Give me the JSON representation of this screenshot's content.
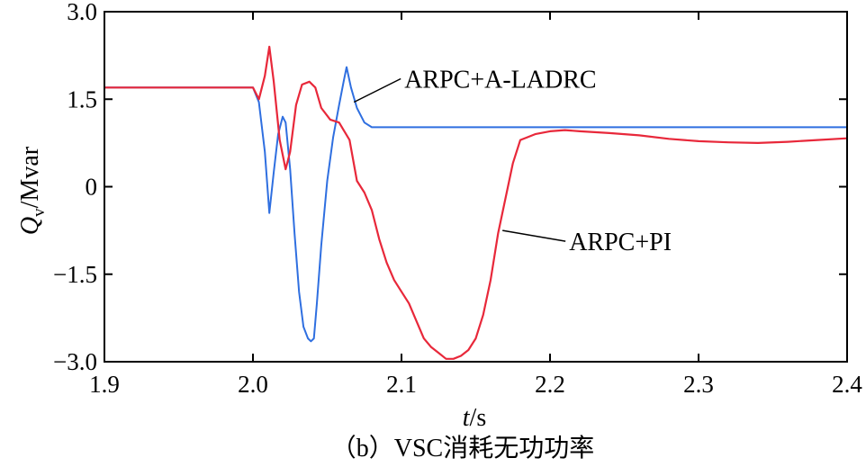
{
  "chart_data": {
    "type": "line",
    "title": "",
    "caption": "（b）VSC消耗无功功率",
    "xlabel": {
      "var": "t",
      "unit": "/s"
    },
    "ylabel": {
      "var": "Q",
      "sub": "v",
      "unit": "/Mvar"
    },
    "xlim": [
      1.9,
      2.4
    ],
    "ylim": [
      -3.0,
      3.0
    ],
    "xticks": [
      1.9,
      2.0,
      2.1,
      2.2,
      2.3,
      2.4
    ],
    "xtick_labels": [
      "1.9",
      "2.0",
      "2.1",
      "2.2",
      "2.3",
      "2.4"
    ],
    "yticks": [
      3.0,
      1.5,
      0,
      -1.5,
      -3.0
    ],
    "ytick_labels": [
      "3.0",
      "1.5",
      "0",
      "−1.5",
      "−3.0"
    ],
    "grid": false,
    "series": [
      {
        "name": "ARPC+A-LADRC",
        "color": "#2f6fe0",
        "x": [
          1.9,
          2.0,
          2.004,
          2.008,
          2.011,
          2.014,
          2.017,
          2.02,
          2.022,
          2.025,
          2.028,
          2.031,
          2.034,
          2.037,
          2.039,
          2.041,
          2.043,
          2.046,
          2.05,
          2.054,
          2.058,
          2.061,
          2.063,
          2.066,
          2.07,
          2.075,
          2.08,
          2.1,
          2.2,
          2.3,
          2.4
        ],
        "y": [
          1.7,
          1.7,
          1.45,
          0.6,
          -0.45,
          0.25,
          0.9,
          1.2,
          1.1,
          0.3,
          -0.8,
          -1.8,
          -2.4,
          -2.6,
          -2.65,
          -2.6,
          -2.0,
          -1.0,
          0.1,
          0.85,
          1.4,
          1.8,
          2.05,
          1.7,
          1.35,
          1.1,
          1.02,
          1.02,
          1.02,
          1.02,
          1.02
        ]
      },
      {
        "name": "ARPC+PI",
        "color": "#e8283a",
        "x": [
          1.9,
          2.0,
          2.004,
          2.008,
          2.011,
          2.014,
          2.018,
          2.022,
          2.025,
          2.029,
          2.033,
          2.038,
          2.042,
          2.046,
          2.052,
          2.058,
          2.065,
          2.07,
          2.075,
          2.08,
          2.085,
          2.09,
          2.095,
          2.1,
          2.105,
          2.11,
          2.115,
          2.12,
          2.125,
          2.13,
          2.135,
          2.14,
          2.145,
          2.15,
          2.155,
          2.16,
          2.165,
          2.17,
          2.175,
          2.18,
          2.185,
          2.19,
          2.2,
          2.21,
          2.22,
          2.24,
          2.26,
          2.28,
          2.3,
          2.32,
          2.34,
          2.36,
          2.38,
          2.4
        ],
        "y": [
          1.7,
          1.7,
          1.5,
          1.9,
          2.4,
          1.8,
          0.8,
          0.3,
          0.6,
          1.4,
          1.75,
          1.8,
          1.7,
          1.35,
          1.15,
          1.1,
          0.8,
          0.1,
          -0.1,
          -0.4,
          -0.9,
          -1.3,
          -1.6,
          -1.8,
          -2.0,
          -2.3,
          -2.6,
          -2.75,
          -2.85,
          -2.95,
          -2.95,
          -2.9,
          -2.8,
          -2.6,
          -2.2,
          -1.6,
          -0.8,
          -0.2,
          0.4,
          0.8,
          0.85,
          0.9,
          0.95,
          0.97,
          0.95,
          0.92,
          0.88,
          0.82,
          0.78,
          0.76,
          0.75,
          0.77,
          0.8,
          0.83
        ]
      }
    ],
    "annotations": [
      {
        "text": "ARPC+A-LADRC",
        "series": "ARPC+A-LADRC",
        "point": [
          2.068,
          1.45
        ],
        "placement": "upper-right"
      },
      {
        "text": "ARPC+PI",
        "series": "ARPC+PI",
        "point": [
          2.168,
          -0.75
        ],
        "placement": "lower-right"
      }
    ]
  }
}
